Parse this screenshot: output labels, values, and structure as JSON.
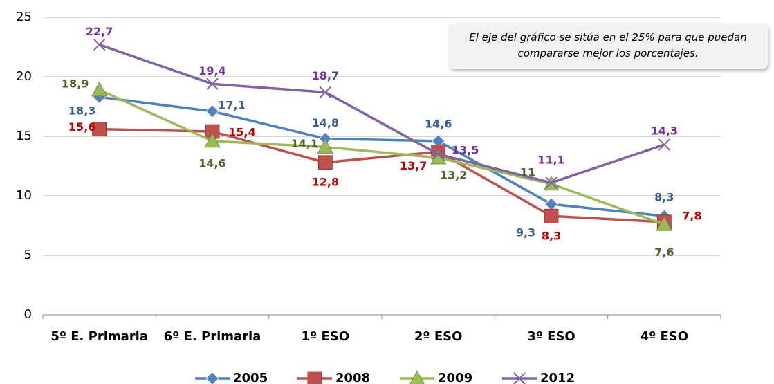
{
  "chart_data": {
    "type": "line",
    "annotation": "El eje del gráfico se sitúa en el 25% para que puedan compararse mejor los porcentajes.",
    "categories": [
      "5º E. Primaria",
      "6º E. Primaria",
      "1º ESO",
      "2º ESO",
      "3º ESO",
      "4º ESO"
    ],
    "series": [
      {
        "name": "2005",
        "color": "#4f81bd",
        "label_color": "#376092",
        "marker": "diamond",
        "values": [
          18.3,
          17.1,
          14.8,
          14.6,
          9.3,
          8.3
        ],
        "value_labels": [
          "18,3",
          "17,1",
          "14,8",
          "14,6",
          "9,3",
          "8,3"
        ]
      },
      {
        "name": "2008",
        "color": "#c0504d",
        "label_color": "#c00000",
        "marker": "square",
        "values": [
          15.6,
          15.4,
          12.8,
          13.7,
          8.3,
          7.8
        ],
        "value_labels": [
          "15,6",
          "15,4",
          "12,8",
          "13,7",
          "8,3",
          "7,8"
        ]
      },
      {
        "name": "2009",
        "color": "#9bbb59",
        "label_color": "#4f6228",
        "marker": "triangle",
        "values": [
          18.9,
          14.6,
          14.1,
          13.2,
          11,
          7.6
        ],
        "value_labels": [
          "18,9",
          "14,6",
          "14,1",
          "13,2",
          "11",
          "7,6"
        ]
      },
      {
        "name": "2012",
        "color": "#8064a2",
        "label_color": "#7030a0",
        "marker": "x",
        "values": [
          22.7,
          19.4,
          18.7,
          13.5,
          11.1,
          14.3
        ],
        "value_labels": [
          "22,7",
          "19,4",
          "18,7",
          "13,5",
          "11,1",
          "14,3"
        ]
      }
    ],
    "ylim": [
      0,
      25
    ],
    "yticks": [
      0,
      5,
      10,
      15,
      20,
      25
    ],
    "grid": true,
    "legend": "bottom"
  }
}
